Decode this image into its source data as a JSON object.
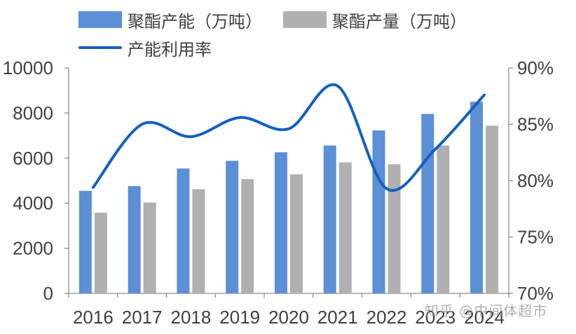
{
  "chart_data": {
    "type": "bar",
    "categories": [
      "2016",
      "2017",
      "2018",
      "2019",
      "2020",
      "2021",
      "2022",
      "2023",
      "2024"
    ],
    "series": [
      {
        "name": "聚酯产能（万吨）",
        "kind": "bar",
        "axis": "left",
        "color": "#5B8FD6",
        "values": [
          4550,
          4760,
          5540,
          5880,
          6260,
          6560,
          7230,
          7960,
          8500
        ]
      },
      {
        "name": "聚酯产量（万吨）",
        "kind": "bar",
        "axis": "left",
        "color": "#B0B0B0",
        "values": [
          3580,
          4030,
          4620,
          5070,
          5280,
          5810,
          5730,
          6560,
          7440
        ]
      },
      {
        "name": "产能利用率",
        "kind": "line",
        "axis": "right",
        "color": "#1460C0",
        "values": [
          79.4,
          85.0,
          83.9,
          85.6,
          84.6,
          88.4,
          79.3,
          82.8,
          87.6
        ]
      }
    ],
    "y_left": {
      "min": 0,
      "max": 10000,
      "ticks": [
        "0",
        "2000",
        "4000",
        "6000",
        "8000",
        "10000"
      ]
    },
    "y_right": {
      "min": 70,
      "max": 90,
      "ticks": [
        "70%",
        "75%",
        "80%",
        "85%",
        "90%"
      ]
    },
    "grid": false,
    "legend_position": "top"
  },
  "legend": {
    "capacity": "聚酯产能（万吨）",
    "output": "聚酯产量（万吨）",
    "utilization": "产能利用率"
  },
  "watermark": "知乎 @中间体超市"
}
